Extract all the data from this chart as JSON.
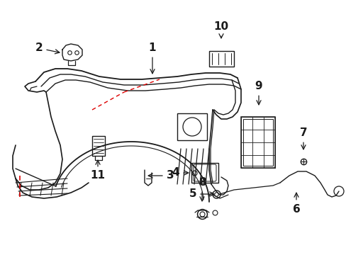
{
  "background_color": "#ffffff",
  "line_color": "#1a1a1a",
  "red_color": "#dd0000",
  "figsize": [
    4.89,
    3.6
  ],
  "dpi": 100
}
